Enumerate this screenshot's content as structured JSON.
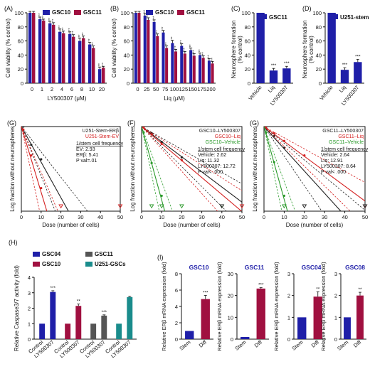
{
  "chart_data": [
    {
      "id": "A",
      "panel_label": "(A)",
      "type": "bar",
      "ylabel": "Cell viability (% control)",
      "xlabel": "LY500307 (μM)",
      "ylim": [
        0,
        100
      ],
      "yticks": [
        "0",
        "20",
        "40",
        "60",
        "80",
        "100"
      ],
      "categories": [
        "0",
        "1",
        "2",
        "4",
        "6",
        "8",
        "10",
        "20"
      ],
      "series": [
        {
          "name": "GSC10",
          "color": "#1f1fa8",
          "values": [
            100,
            91,
            85,
            73,
            70,
            60,
            55,
            20
          ],
          "errors": [
            2,
            3,
            3,
            4,
            3,
            4,
            3,
            3
          ]
        },
        {
          "name": "GSC11",
          "color": "#a01040",
          "values": [
            100,
            89,
            83,
            71,
            66,
            64,
            50,
            22
          ],
          "errors": [
            2,
            2,
            3,
            3,
            3,
            3,
            3,
            2
          ]
        }
      ],
      "sig": [
        "",
        "***",
        "***",
        "***",
        "***",
        "***",
        "***",
        "***"
      ]
    },
    {
      "id": "B",
      "panel_label": "(B)",
      "type": "bar",
      "ylabel": "Cell viability (% control)",
      "xlabel": "Liq (μM)",
      "ylim": [
        0,
        100
      ],
      "yticks": [
        "0",
        "20",
        "40",
        "60",
        "80",
        "100"
      ],
      "categories": [
        "0",
        "25",
        "50",
        "75",
        "100",
        "125",
        "150",
        "175",
        "200"
      ],
      "series": [
        {
          "name": "GSC10",
          "color": "#1f1fa8",
          "values": [
            100,
            96,
            87,
            72,
            57,
            53,
            47,
            40,
            32
          ],
          "errors": [
            2,
            3,
            3,
            3,
            4,
            3,
            3,
            3,
            3
          ]
        },
        {
          "name": "GSC11",
          "color": "#a01040",
          "values": [
            100,
            90,
            67,
            50,
            45,
            42,
            39,
            36,
            28
          ],
          "errors": [
            2,
            3,
            3,
            3,
            3,
            3,
            3,
            3,
            3
          ]
        }
      ],
      "sig": [
        "",
        "***",
        "***",
        "***",
        "***",
        "***",
        "***",
        "***",
        "***"
      ]
    },
    {
      "id": "C",
      "panel_label": "(C)",
      "type": "bar",
      "ylabel": "Neurosphere formation (% control)",
      "ylim": [
        0,
        100
      ],
      "yticks": [
        "0",
        "20",
        "40",
        "60",
        "80",
        "100"
      ],
      "categories": [
        "Vehicle",
        "Liq",
        "LY500307"
      ],
      "series": [
        {
          "name": "GSC11",
          "color": "#1f1fa8",
          "values": [
            100,
            18,
            21
          ],
          "errors": [
            0,
            3,
            3
          ]
        }
      ],
      "sig": [
        "",
        "***",
        "***"
      ]
    },
    {
      "id": "D",
      "panel_label": "(D)",
      "type": "bar",
      "ylabel": "Neurosphere formation (% control)",
      "ylim": [
        0,
        100
      ],
      "yticks": [
        "0",
        "20",
        "40",
        "60",
        "80",
        "100"
      ],
      "categories": [
        "Vehicle",
        "Liq",
        "LY500307"
      ],
      "series": [
        {
          "name": "U251-stem",
          "color": "#1f1fa8",
          "values": [
            100,
            19,
            30
          ],
          "errors": [
            0,
            3,
            4
          ]
        }
      ],
      "sig": [
        "",
        "***",
        "***"
      ]
    },
    {
      "id": "G1",
      "panel_label": "(G)",
      "type": "line",
      "ylabel": "Log fraction without neurospheres",
      "xlabel": "Dose (number of cells)",
      "xlim": [
        0,
        50
      ],
      "xticks": [
        "0",
        "10",
        "20",
        "30",
        "40",
        "50"
      ],
      "legend": [
        {
          "name": "U251-Stem-ERβ",
          "color": "#222222"
        },
        {
          "name": "U251-Stem-EV",
          "color": "#d42020"
        }
      ],
      "info": [
        "1/stem cell frequency",
        "EV: 2.93",
        "ERβ: 5.41",
        "P val=.01"
      ],
      "series": [
        {
          "name": "U251-Stem-ERβ",
          "color": "#222222",
          "freq": 5.41,
          "ci": [
            3.9,
            7.6
          ],
          "points": [
            [
              1,
              0
            ],
            [
              5,
              -0.95
            ],
            [
              10,
              -1.7
            ]
          ]
        },
        {
          "name": "U251-Stem-EV",
          "color": "#d42020",
          "freq": 2.93,
          "ci": [
            2.1,
            4.2
          ],
          "points": [
            [
              1,
              -0.15
            ],
            [
              5,
              -1.5
            ],
            [
              10,
              -3.2
            ]
          ]
        }
      ],
      "open_markers": [
        {
          "x": 20,
          "color": "#d42020"
        },
        {
          "x": 50,
          "color": "#d42020"
        }
      ]
    },
    {
      "id": "F",
      "panel_label": "(F)",
      "type": "line",
      "ylabel": "Log fraction without neurospheres",
      "xlabel": "Dose (number of cells)",
      "xlim": [
        0,
        50
      ],
      "xticks": [
        "0",
        "10",
        "20",
        "30",
        "40",
        "50"
      ],
      "legend": [
        {
          "name": "GSC10–LY500307",
          "color": "#222222"
        },
        {
          "name": "GSC10–Liq",
          "color": "#d42020"
        },
        {
          "name": "GSC10–Vehicle",
          "color": "#2a9a2a"
        }
      ],
      "info": [
        "1/stem cell frequency",
        "Vehicle: 2.62",
        "Liq: 11.32",
        "LY500307: 12.72",
        "P val< .000"
      ],
      "series": [
        {
          "name": "GSC10–LY500307",
          "color": "#222222",
          "freq": 12.72,
          "ci": [
            9.6,
            16.8
          ],
          "points": [
            [
              1,
              -0.02
            ],
            [
              5,
              -0.35
            ],
            [
              10,
              -0.8
            ],
            [
              20,
              -1.6
            ]
          ]
        },
        {
          "name": "GSC10–Liq",
          "color": "#d42020",
          "freq": 11.32,
          "ci": [
            8.6,
            15.0
          ],
          "points": [
            [
              1,
              -0.05
            ],
            [
              5,
              -0.4
            ],
            [
              10,
              -0.9
            ],
            [
              20,
              -1.75
            ]
          ]
        },
        {
          "name": "GSC10–Vehicle",
          "color": "#2a9a2a",
          "freq": 2.62,
          "ci": [
            2.0,
            3.5
          ],
          "points": [
            [
              1,
              -0.3
            ],
            [
              5,
              -1.9
            ],
            [
              10,
              -3.6
            ]
          ]
        }
      ],
      "open_markers": [
        {
          "x": 5,
          "color": "#2a9a2a"
        },
        {
          "x": 10,
          "color": "#2a9a2a"
        },
        {
          "x": 20,
          "color": "#2a9a2a"
        },
        {
          "x": 40,
          "color": "#2a9a2a"
        },
        {
          "x": 50,
          "color": "#d42020"
        },
        {
          "x": 40,
          "color": "#222222"
        }
      ]
    },
    {
      "id": "G2",
      "panel_label": "(G)",
      "type": "line",
      "ylabel": "Log fraction without neurospheres",
      "xlabel": "Dose (number of cells)",
      "xlim": [
        0,
        50
      ],
      "xticks": [
        "0",
        "10",
        "20",
        "30",
        "40",
        "50"
      ],
      "legend": [
        {
          "name": "GSC11–LY500307",
          "color": "#222222"
        },
        {
          "name": "GSC11–Liq",
          "color": "#d42020"
        },
        {
          "name": "GSC11–Vehicle",
          "color": "#2a9a2a"
        }
      ],
      "info": [
        "1/stem cell frequency",
        "Vehicle: 2.64",
        "Liq: 12.91",
        "LY500307: 8.64",
        "P val< .000"
      ],
      "series": [
        {
          "name": "GSC11–LY500307",
          "color": "#222222",
          "freq": 8.64,
          "ci": [
            6.5,
            11.5
          ],
          "points": [
            [
              1,
              -0.05
            ],
            [
              5,
              -0.5
            ],
            [
              10,
              -1.1
            ]
          ]
        },
        {
          "name": "GSC11–Liq",
          "color": "#d42020",
          "freq": 12.91,
          "ci": [
            9.7,
            17.2
          ],
          "points": [
            [
              1,
              -0.02
            ],
            [
              5,
              -0.35
            ],
            [
              10,
              -0.75
            ],
            [
              20,
              -1.5
            ]
          ]
        },
        {
          "name": "GSC11–Vehicle",
          "color": "#2a9a2a",
          "freq": 2.64,
          "ci": [
            2.0,
            3.5
          ],
          "points": [
            [
              1,
              -0.3
            ],
            [
              5,
              -1.85
            ],
            [
              10,
              -3.6
            ]
          ]
        }
      ],
      "open_markers": [
        {
          "x": 10,
          "color": "#2a9a2a"
        },
        {
          "x": 20,
          "color": "#222222"
        },
        {
          "x": 50,
          "color": "#d42020"
        },
        {
          "x": 50,
          "color": "#222222"
        }
      ]
    },
    {
      "id": "H",
      "panel_label": "(H)",
      "type": "bar",
      "ylabel": "Relative Caspase3/7 activity (fold)",
      "ylim": [
        0,
        4
      ],
      "yticks": [
        "0",
        "1",
        "2",
        "3",
        "4"
      ],
      "groups": [
        {
          "name": "GSC04",
          "color": "#1f1fa8",
          "labels": [
            "Control",
            "LY500307"
          ],
          "values": [
            1,
            3.05
          ],
          "errors": [
            0,
            0.08
          ],
          "sig": "***"
        },
        {
          "name": "GSC10",
          "color": "#a01040",
          "labels": [
            "Control",
            "LY500307"
          ],
          "values": [
            1,
            2.15
          ],
          "errors": [
            0,
            0.12
          ],
          "sig": "**"
        },
        {
          "name": "GSC11",
          "color": "#555555",
          "labels": [
            "Control",
            "LY500307"
          ],
          "values": [
            1,
            1.52
          ],
          "errors": [
            0,
            0.05
          ],
          "sig": "***"
        },
        {
          "name": "U251-GSCs",
          "color": "#1a8c8c",
          "labels": [
            "Control",
            "LY500307"
          ],
          "values": [
            1,
            2.72
          ],
          "errors": [
            0,
            0.05
          ],
          "sig": ""
        }
      ]
    },
    {
      "id": "I1",
      "panel_label": "(I)",
      "type": "bar",
      "title": "GSC10",
      "ylabel": "Relative ERβ mRNA expression (fold)",
      "ylim": [
        0,
        8
      ],
      "yticks": [
        "0",
        "2",
        "4",
        "6",
        "8"
      ],
      "categories": [
        "Stem",
        "Diff"
      ],
      "values": [
        1,
        4.9
      ],
      "errors": [
        0,
        0.45
      ],
      "colors": [
        "#1f1fa8",
        "#a01040"
      ],
      "sig": "***"
    },
    {
      "id": "I2",
      "panel_label": "",
      "type": "bar",
      "title": "GSC11",
      "ylabel": "Relative ERβ mRNA expression (fold)",
      "ylim": [
        0,
        30
      ],
      "yticks": [
        "0",
        "10",
        "20",
        "30"
      ],
      "categories": [
        "Stem",
        "Diff"
      ],
      "values": [
        1,
        23.2
      ],
      "errors": [
        0,
        0.4
      ],
      "colors": [
        "#1f1fa8",
        "#a01040"
      ],
      "sig": "***"
    },
    {
      "id": "I3",
      "panel_label": "",
      "type": "bar",
      "title": "GSC04",
      "ylabel": "Relative ERβ mRNA expression (fold)",
      "ylim": [
        0,
        3
      ],
      "yticks": [
        "0",
        "1",
        "2",
        "3"
      ],
      "categories": [
        "Stem",
        "Diff"
      ],
      "values": [
        1,
        1.95
      ],
      "errors": [
        0,
        0.22
      ],
      "colors": [
        "#1f1fa8",
        "#a01040"
      ],
      "sig": "**"
    },
    {
      "id": "I4",
      "panel_label": "",
      "type": "bar",
      "title": "GSC08",
      "ylabel": "Relative ERβ mRNA expression (fold)",
      "ylim": [
        0,
        3
      ],
      "yticks": [
        "0",
        "1",
        "2",
        "3"
      ],
      "categories": [
        "Stem",
        "Diff"
      ],
      "values": [
        1,
        2.0
      ],
      "errors": [
        0,
        0.15
      ],
      "colors": [
        "#1f1fa8",
        "#a01040"
      ],
      "sig": "**"
    }
  ]
}
